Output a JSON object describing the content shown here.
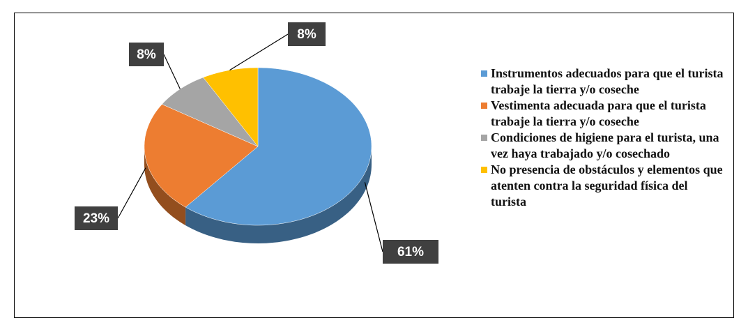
{
  "chart_data": {
    "type": "pie",
    "categories": [
      "Instrumentos adecuados para que el turista trabaje la tierra y/o coseche",
      "Vestimenta adecuada para que el turista trabaje la tierra y/o coseche",
      "Condiciones de higiene para el turista, una vez haya trabajado y/o cosechado",
      "No presencia de obstáculos y elementos que atenten contra la seguridad física del turista"
    ],
    "values": [
      61,
      23,
      8,
      8
    ],
    "value_labels": [
      "61%",
      "23%",
      "8%",
      "8%"
    ],
    "colors": [
      "#5b9bd5",
      "#ed7d31",
      "#a5a5a5",
      "#ffc000"
    ],
    "legend": "right"
  }
}
